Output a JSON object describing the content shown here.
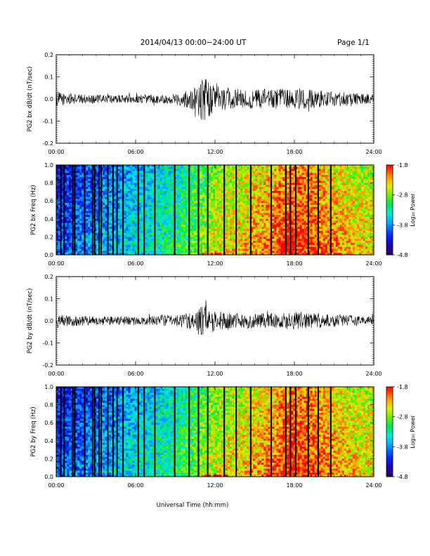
{
  "header": {
    "date_range": "2014/04/13  00:00−24:00 UT",
    "page_label": "Page 1/1"
  },
  "x_axis": {
    "title": "Universal Time (hh:mm)",
    "range_hours": [
      0,
      24
    ],
    "ticks": [
      "00:00",
      "06:00",
      "12:00",
      "18:00",
      "24:00"
    ]
  },
  "colorbar": {
    "label": "Log₁₀ Power",
    "ticks": [
      "-1.8",
      "-2.8",
      "-3.8",
      "-4.8"
    ],
    "range": [
      -4.8,
      -1.8
    ]
  },
  "chart_data": [
    {
      "type": "line",
      "ylabel": "PG2 bx dB/dt (nT/sec)",
      "ylim": [
        -0.2,
        0.2
      ],
      "y_ticks": [
        "0.2",
        "0.1",
        "0.0",
        "-0.1",
        "-0.2"
      ],
      "series": [
        {
          "x_hours": [
            0,
            1,
            2,
            3,
            4,
            5,
            6,
            7,
            8,
            9,
            10,
            10.5,
            11,
            11.5,
            12,
            13,
            14,
            15,
            16,
            17,
            18,
            19,
            20,
            21,
            22,
            23,
            24
          ],
          "amplitude": [
            0.035,
            0.025,
            0.02,
            0.02,
            0.018,
            0.018,
            0.02,
            0.02,
            0.02,
            0.025,
            0.04,
            0.06,
            0.1,
            0.09,
            0.06,
            0.05,
            0.045,
            0.045,
            0.045,
            0.045,
            0.05,
            0.045,
            0.04,
            0.035,
            0.03,
            0.025,
            0.022
          ]
        }
      ]
    },
    {
      "type": "heatmap",
      "ylabel": "PG2 bx Freq (Hz)",
      "ylim": [
        0.0,
        1.0
      ],
      "y_ticks": [
        "1.0",
        "0.8",
        "0.6",
        "0.4",
        "0.2",
        "0.0"
      ],
      "x_hours": [
        0,
        1,
        2,
        3,
        4,
        5,
        6,
        7,
        8,
        9,
        10,
        11,
        12,
        13,
        14,
        15,
        16,
        17,
        18,
        19,
        20,
        21,
        22,
        23,
        24
      ],
      "log_power": [
        -4.2,
        -4.1,
        -4.0,
        -3.9,
        -3.8,
        -3.7,
        -3.6,
        -3.5,
        -3.4,
        -3.3,
        -3.1,
        -2.9,
        -2.7,
        -2.6,
        -2.5,
        -2.4,
        -2.3,
        -2.1,
        -2.0,
        -2.1,
        -2.2,
        -2.35,
        -2.45,
        -2.55,
        -2.6
      ],
      "gap_hours": [
        0.35,
        0.6,
        1.25,
        1.4,
        2.15,
        2.75,
        2.9,
        3.25,
        3.4,
        3.9,
        4.3,
        4.6,
        5.05,
        6.2,
        6.65,
        7.45,
        8.95,
        10.05,
        10.75,
        11.45,
        12.7,
        13.6,
        14.7,
        16.25,
        17.35,
        17.7,
        18.1,
        19.05,
        19.8,
        20.75
      ]
    },
    {
      "type": "line",
      "ylabel": "PG2 by dB/dt (nT/sec)",
      "ylim": [
        -0.2,
        0.2
      ],
      "y_ticks": [
        "0.2",
        "0.1",
        "0.0",
        "-0.1",
        "-0.2"
      ],
      "series": [
        {
          "x_hours": [
            0,
            1,
            2,
            3,
            4,
            5,
            6,
            7,
            8,
            9,
            10,
            10.5,
            11,
            11.5,
            12,
            13,
            14,
            15,
            16,
            17,
            18,
            19,
            20,
            21,
            22,
            23,
            24
          ],
          "amplitude": [
            0.03,
            0.025,
            0.022,
            0.02,
            0.02,
            0.02,
            0.02,
            0.022,
            0.025,
            0.025,
            0.035,
            0.045,
            0.07,
            0.065,
            0.045,
            0.04,
            0.035,
            0.035,
            0.035,
            0.035,
            0.04,
            0.035,
            0.03,
            0.028,
            0.025,
            0.022,
            0.02
          ]
        }
      ]
    },
    {
      "type": "heatmap",
      "ylabel": "PG2 by Freq (Hz)",
      "ylim": [
        0.0,
        1.0
      ],
      "y_ticks": [
        "1.0",
        "0.8",
        "0.6",
        "0.4",
        "0.2",
        "0.0"
      ],
      "x_hours": [
        0,
        1,
        2,
        3,
        4,
        5,
        6,
        7,
        8,
        9,
        10,
        11,
        12,
        13,
        14,
        15,
        16,
        17,
        18,
        19,
        20,
        21,
        22,
        23,
        24
      ],
      "log_power": [
        -4.2,
        -4.1,
        -4.0,
        -3.9,
        -3.8,
        -3.7,
        -3.6,
        -3.5,
        -3.4,
        -3.3,
        -3.1,
        -2.9,
        -2.7,
        -2.6,
        -2.5,
        -2.4,
        -2.3,
        -2.1,
        -2.0,
        -2.1,
        -2.2,
        -2.35,
        -2.45,
        -2.55,
        -2.6
      ],
      "gap_hours": [
        0.35,
        0.6,
        1.25,
        1.4,
        2.15,
        2.75,
        2.9,
        3.25,
        3.4,
        3.9,
        4.3,
        4.6,
        5.05,
        6.2,
        6.65,
        7.45,
        8.95,
        10.05,
        10.75,
        11.45,
        12.7,
        13.6,
        14.7,
        16.25,
        17.35,
        17.7,
        18.1,
        19.05,
        19.8,
        20.75
      ]
    }
  ]
}
